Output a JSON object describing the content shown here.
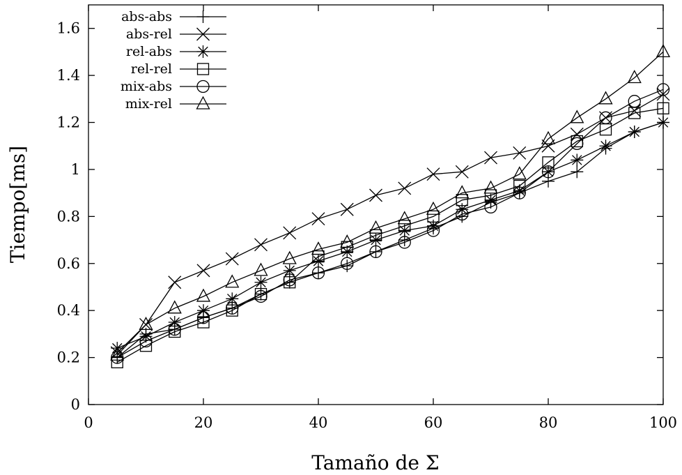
{
  "chart_data": {
    "type": "line",
    "title": "",
    "xlabel": "Tamaño de Σ",
    "ylabel": "Tiempo[ms]",
    "xlim": [
      0,
      100
    ],
    "ylim": [
      0,
      1.7
    ],
    "xticks": [
      0,
      20,
      40,
      60,
      80,
      100
    ],
    "xtick_labels": [
      "0",
      "20",
      "40",
      "60",
      "80",
      "100"
    ],
    "yticks": [
      0,
      0.2,
      0.4,
      0.6,
      0.8,
      1,
      1.2,
      1.4,
      1.6
    ],
    "ytick_labels": [
      "0",
      "0.2",
      "0.4",
      "0.6",
      "0.8",
      "1",
      "1.2",
      "1.4",
      "1.6"
    ],
    "grid": false,
    "legend_position": "top-left",
    "x": [
      5,
      10,
      15,
      20,
      25,
      30,
      35,
      40,
      45,
      50,
      55,
      60,
      65,
      70,
      75,
      80,
      85,
      90,
      95,
      100
    ],
    "series": [
      {
        "name": "abs-abs",
        "marker": "plus",
        "values": [
          0.2,
          0.3,
          0.32,
          0.37,
          0.41,
          0.47,
          0.52,
          0.56,
          0.59,
          0.65,
          0.7,
          0.75,
          0.8,
          0.86,
          0.9,
          0.95,
          0.99,
          1.09,
          1.16,
          1.2
        ]
      },
      {
        "name": "abs-rel",
        "marker": "cross",
        "values": [
          0.22,
          0.34,
          0.52,
          0.57,
          0.62,
          0.68,
          0.73,
          0.79,
          0.83,
          0.89,
          0.92,
          0.98,
          0.99,
          1.05,
          1.07,
          1.1,
          1.15,
          1.22,
          1.25,
          1.32
        ]
      },
      {
        "name": "rel-abs",
        "marker": "asterisk",
        "values": [
          0.24,
          0.29,
          0.35,
          0.4,
          0.45,
          0.52,
          0.57,
          0.61,
          0.65,
          0.7,
          0.74,
          0.76,
          0.83,
          0.87,
          0.91,
          0.99,
          1.04,
          1.1,
          1.16,
          1.2
        ]
      },
      {
        "name": "rel-rel",
        "marker": "square",
        "values": [
          0.18,
          0.25,
          0.31,
          0.35,
          0.4,
          0.47,
          0.52,
          0.63,
          0.67,
          0.72,
          0.76,
          0.8,
          0.87,
          0.89,
          0.93,
          1.03,
          1.12,
          1.17,
          1.24,
          1.26
        ]
      },
      {
        "name": "mix-abs",
        "marker": "circle",
        "values": [
          0.2,
          0.27,
          0.32,
          0.37,
          0.41,
          0.46,
          0.53,
          0.56,
          0.6,
          0.65,
          0.69,
          0.74,
          0.81,
          0.84,
          0.9,
          0.99,
          1.11,
          1.22,
          1.29,
          1.34
        ]
      },
      {
        "name": "mix-rel",
        "marker": "triangle",
        "values": [
          0.21,
          0.34,
          0.41,
          0.46,
          0.52,
          0.57,
          0.62,
          0.66,
          0.69,
          0.75,
          0.79,
          0.83,
          0.9,
          0.92,
          0.98,
          1.13,
          1.22,
          1.3,
          1.39,
          1.5
        ]
      }
    ]
  }
}
